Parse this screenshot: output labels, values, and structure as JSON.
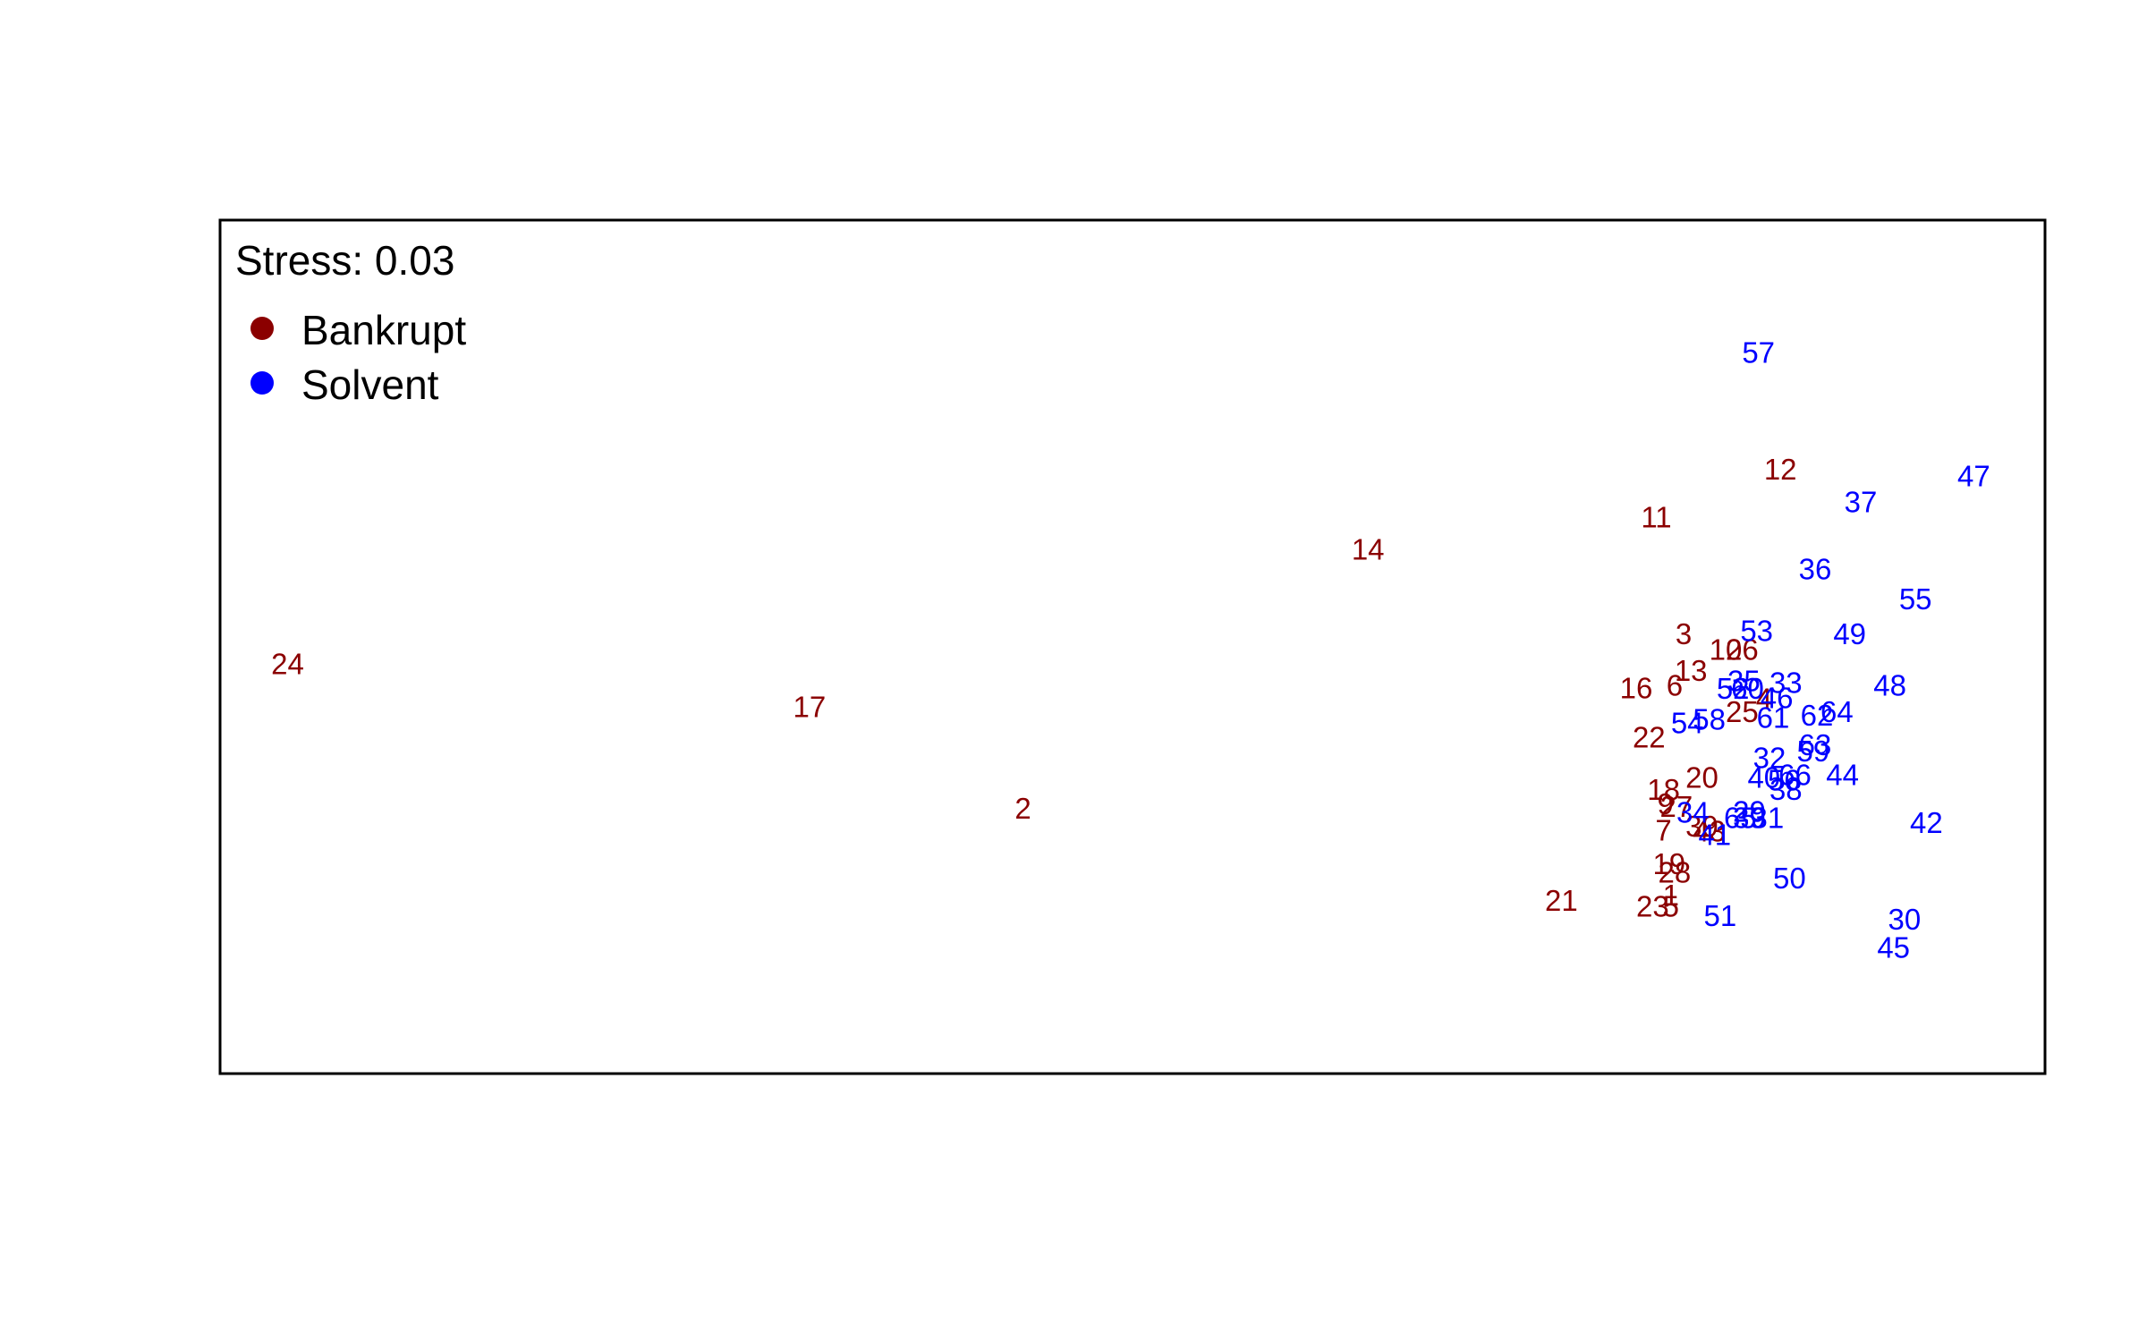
{
  "chart_data": {
    "type": "scatter",
    "title": "",
    "xlabel": "",
    "ylabel": "",
    "xlim": [
      0,
      100
    ],
    "ylim": [
      0,
      100
    ],
    "grid": false,
    "legend_placement": "top-left",
    "stress_label": "Stress:  0.03",
    "series": [
      {
        "name": "Bankrupt",
        "color": "#8B0000",
        "points": [
          {
            "label": "24",
            "x": 3.7,
            "y": 48.0
          },
          {
            "label": "17",
            "x": 32.3,
            "y": 43.0
          },
          {
            "label": "2",
            "x": 44.0,
            "y": 31.1
          },
          {
            "label": "14",
            "x": 62.9,
            "y": 61.4
          },
          {
            "label": "11",
            "x": 78.7,
            "y": 65.2
          },
          {
            "label": "12",
            "x": 85.5,
            "y": 70.8
          },
          {
            "label": "3",
            "x": 80.2,
            "y": 51.5
          },
          {
            "label": "10",
            "x": 82.5,
            "y": 49.7
          },
          {
            "label": "26",
            "x": 83.4,
            "y": 49.7
          },
          {
            "label": "13",
            "x": 80.6,
            "y": 47.2
          },
          {
            "label": "16",
            "x": 77.6,
            "y": 45.2
          },
          {
            "label": "6",
            "x": 79.7,
            "y": 45.5
          },
          {
            "label": "25",
            "x": 83.4,
            "y": 42.4
          },
          {
            "label": "4",
            "x": 84.6,
            "y": 43.9
          },
          {
            "label": "22",
            "x": 78.3,
            "y": 39.4
          },
          {
            "label": "20",
            "x": 81.2,
            "y": 34.7
          },
          {
            "label": "18",
            "x": 79.1,
            "y": 33.3
          },
          {
            "label": "9",
            "x": 79.2,
            "y": 31.6
          },
          {
            "label": "27",
            "x": 79.8,
            "y": 31.3
          },
          {
            "label": "7",
            "x": 79.1,
            "y": 28.5
          },
          {
            "label": "39",
            "x": 81.2,
            "y": 29.0
          },
          {
            "label": "43",
            "x": 81.6,
            "y": 28.4
          },
          {
            "label": "19",
            "x": 79.4,
            "y": 24.6
          },
          {
            "label": "28",
            "x": 79.7,
            "y": 23.6
          },
          {
            "label": "21",
            "x": 73.5,
            "y": 20.3
          },
          {
            "label": "23",
            "x": 78.5,
            "y": 19.6
          },
          {
            "label": "1",
            "x": 79.5,
            "y": 20.9
          },
          {
            "label": "5",
            "x": 79.5,
            "y": 19.6
          }
        ]
      },
      {
        "name": "Solvent",
        "color": "#0000FF",
        "points": [
          {
            "label": "57",
            "x": 84.3,
            "y": 84.5
          },
          {
            "label": "47",
            "x": 96.1,
            "y": 70.0
          },
          {
            "label": "37",
            "x": 89.9,
            "y": 67.0
          },
          {
            "label": "36",
            "x": 87.4,
            "y": 59.1
          },
          {
            "label": "55",
            "x": 92.9,
            "y": 55.6
          },
          {
            "label": "53",
            "x": 84.2,
            "y": 51.9
          },
          {
            "label": "49",
            "x": 89.3,
            "y": 51.5
          },
          {
            "label": "35",
            "x": 83.5,
            "y": 46.0
          },
          {
            "label": "33",
            "x": 85.8,
            "y": 45.8
          },
          {
            "label": "48",
            "x": 91.5,
            "y": 45.5
          },
          {
            "label": "52",
            "x": 82.9,
            "y": 45.1
          },
          {
            "label": "60",
            "x": 83.7,
            "y": 45.1
          },
          {
            "label": "46",
            "x": 85.3,
            "y": 44.0
          },
          {
            "label": "62",
            "x": 87.5,
            "y": 42.0
          },
          {
            "label": "64",
            "x": 88.6,
            "y": 42.4
          },
          {
            "label": "61",
            "x": 85.1,
            "y": 41.7
          },
          {
            "label": "54",
            "x": 80.4,
            "y": 41.1
          },
          {
            "label": "58",
            "x": 81.6,
            "y": 41.5
          },
          {
            "label": "63",
            "x": 87.4,
            "y": 38.5
          },
          {
            "label": "59",
            "x": 87.3,
            "y": 37.8
          },
          {
            "label": "32",
            "x": 84.9,
            "y": 37.0
          },
          {
            "label": "40",
            "x": 84.6,
            "y": 34.7
          },
          {
            "label": "56",
            "x": 85.7,
            "y": 34.4
          },
          {
            "label": "66",
            "x": 86.3,
            "y": 35.0
          },
          {
            "label": "44",
            "x": 88.9,
            "y": 35.0
          },
          {
            "label": "38",
            "x": 85.8,
            "y": 33.3
          },
          {
            "label": "34",
            "x": 80.7,
            "y": 30.6
          },
          {
            "label": "31",
            "x": 84.8,
            "y": 30.0
          },
          {
            "label": "29",
            "x": 83.8,
            "y": 30.7
          },
          {
            "label": "65",
            "x": 83.3,
            "y": 30.0
          },
          {
            "label": "39",
            "x": 83.8,
            "y": 30.0
          },
          {
            "label": "41",
            "x": 81.9,
            "y": 28.0
          },
          {
            "label": "42",
            "x": 93.5,
            "y": 29.4
          },
          {
            "label": "50",
            "x": 86.0,
            "y": 22.9
          },
          {
            "label": "51",
            "x": 82.2,
            "y": 18.5
          },
          {
            "label": "30",
            "x": 92.3,
            "y": 18.1
          },
          {
            "label": "45",
            "x": 91.7,
            "y": 14.8
          }
        ]
      }
    ]
  }
}
